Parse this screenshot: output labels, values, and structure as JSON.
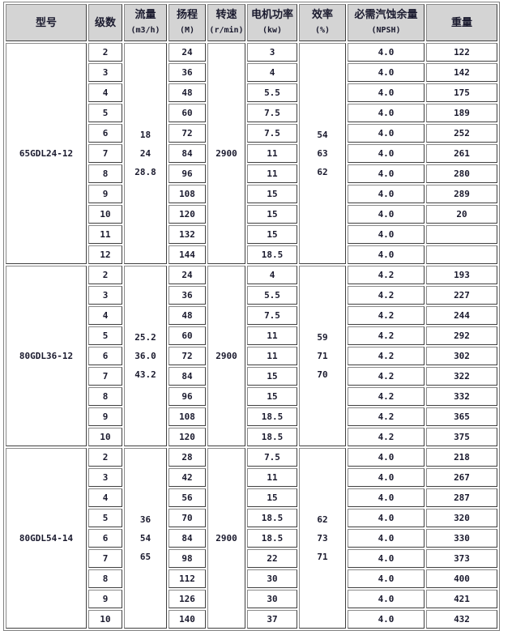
{
  "headers": [
    {
      "label": "型号",
      "unit": ""
    },
    {
      "label": "级数",
      "unit": ""
    },
    {
      "label": "流量",
      "unit": "(m3/h)"
    },
    {
      "label": "扬程",
      "unit": "(M)"
    },
    {
      "label": "转速",
      "unit": "(r/min)"
    },
    {
      "label": "电机功率",
      "unit": "(kw)"
    },
    {
      "label": "效率",
      "unit": "(%)"
    },
    {
      "label": "必需汽蚀余量",
      "unit": "(NPSH)"
    },
    {
      "label": "重量",
      "unit": ""
    }
  ],
  "groups": [
    {
      "model": "65GDL24-12",
      "flow": [
        "18",
        "24",
        "28.8"
      ],
      "speed": "2900",
      "efficiency": [
        "54",
        "63",
        "62"
      ],
      "rows": [
        [
          "2",
          "24",
          "3",
          "4.0",
          "122"
        ],
        [
          "3",
          "36",
          "4",
          "4.0",
          "142"
        ],
        [
          "4",
          "48",
          "5.5",
          "4.0",
          "175"
        ],
        [
          "5",
          "60",
          "7.5",
          "4.0",
          "189"
        ],
        [
          "6",
          "72",
          "7.5",
          "4.0",
          "252"
        ],
        [
          "7",
          "84",
          "11",
          "4.0",
          "261"
        ],
        [
          "8",
          "96",
          "11",
          "4.0",
          "280"
        ],
        [
          "9",
          "108",
          "15",
          "4.0",
          "289"
        ],
        [
          "10",
          "120",
          "15",
          "4.0",
          "20"
        ],
        [
          "11",
          "132",
          "15",
          "4.0",
          ""
        ],
        [
          "12",
          "144",
          "18.5",
          "4.0",
          ""
        ]
      ]
    },
    {
      "model": "80GDL36-12",
      "flow": [
        "25.2",
        "36.0",
        "43.2"
      ],
      "speed": "2900",
      "efficiency": [
        "59",
        "71",
        "70"
      ],
      "rows": [
        [
          "2",
          "24",
          "4",
          "4.2",
          "193"
        ],
        [
          "3",
          "36",
          "5.5",
          "4.2",
          "227"
        ],
        [
          "4",
          "48",
          "7.5",
          "4.2",
          "244"
        ],
        [
          "5",
          "60",
          "11",
          "4.2",
          "292"
        ],
        [
          "6",
          "72",
          "11",
          "4.2",
          "302"
        ],
        [
          "7",
          "84",
          "15",
          "4.2",
          "322"
        ],
        [
          "8",
          "96",
          "15",
          "4.2",
          "332"
        ],
        [
          "9",
          "108",
          "18.5",
          "4.2",
          "365"
        ],
        [
          "10",
          "120",
          "18.5",
          "4.2",
          "375"
        ]
      ]
    },
    {
      "model": "80GDL54-14",
      "flow": [
        "36",
        "54",
        "65"
      ],
      "speed": "2900",
      "efficiency": [
        "62",
        "73",
        "71"
      ],
      "rows": [
        [
          "2",
          "28",
          "7.5",
          "4.0",
          "218"
        ],
        [
          "3",
          "42",
          "11",
          "4.0",
          "267"
        ],
        [
          "4",
          "56",
          "15",
          "4.0",
          "287"
        ],
        [
          "5",
          "70",
          "18.5",
          "4.0",
          "320"
        ],
        [
          "6",
          "84",
          "18.5",
          "4.0",
          "330"
        ],
        [
          "7",
          "98",
          "22",
          "4.0",
          "373"
        ],
        [
          "8",
          "112",
          "30",
          "4.0",
          "400"
        ],
        [
          "9",
          "126",
          "30",
          "4.0",
          "421"
        ],
        [
          "10",
          "140",
          "37",
          "4.0",
          "432"
        ]
      ]
    }
  ]
}
